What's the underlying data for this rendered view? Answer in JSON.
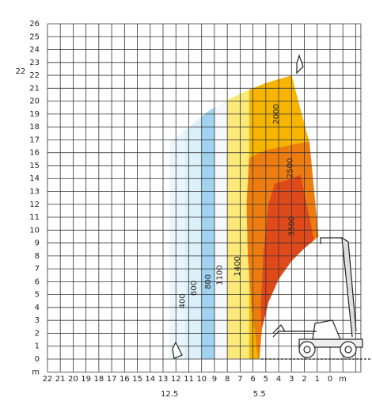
{
  "y_labels": [
    0,
    1,
    2,
    3,
    4,
    5,
    6,
    7,
    8,
    9,
    10,
    11,
    12,
    13,
    14,
    15,
    16,
    17,
    18,
    19,
    20,
    21,
    22,
    23,
    24,
    25,
    26
  ],
  "y_unit": "m",
  "side_label": "22",
  "x_labels": [
    22,
    21,
    20,
    19,
    18,
    17,
    16,
    15,
    14,
    13,
    12,
    11,
    10,
    9,
    8,
    7,
    6,
    5,
    4,
    3,
    2,
    1,
    0
  ],
  "x_unit": "m",
  "markers": [
    12.5,
    5.5
  ],
  "zones": [
    {
      "label": 400
    },
    {
      "label": 600
    },
    {
      "label": 800
    },
    {
      "label": 1100
    },
    {
      "label": 1400
    },
    {
      "label": 2000
    },
    {
      "label": 2500
    },
    {
      "label": 3500
    }
  ]
}
